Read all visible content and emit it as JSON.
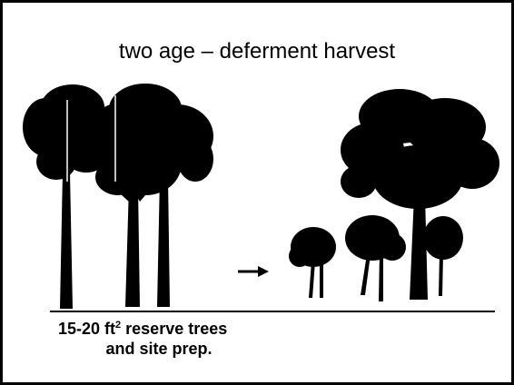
{
  "title": "two age – deferment harvest",
  "caption": {
    "line1": {
      "text": "15-20 ft",
      "superscript": "2",
      "rest": " reserve trees"
    },
    "line2": "and site prep."
  }
}
